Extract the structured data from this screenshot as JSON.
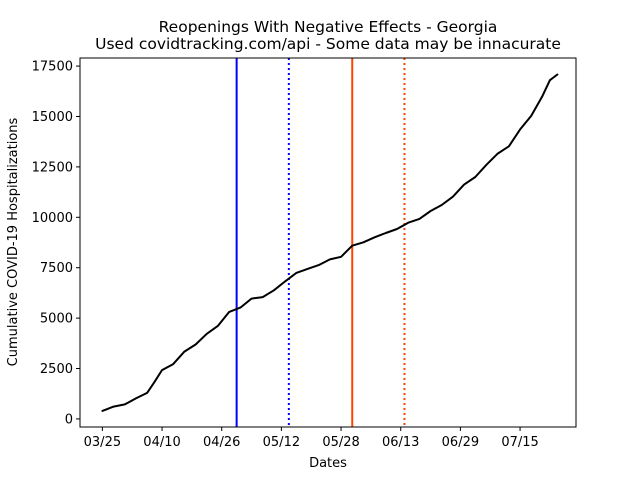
{
  "chart_data": {
    "type": "line",
    "title": "Reopenings With Negative Effects - Georgia",
    "subtitle": "Used covidtracking.com/api - Some data may be innacurate",
    "xlabel": "Dates",
    "ylabel": "Cumulative COVID-19 Hospitalizations",
    "x_ticks": [
      "03/25",
      "04/10",
      "04/26",
      "05/12",
      "05/28",
      "06/13",
      "06/29",
      "07/15"
    ],
    "y_ticks": [
      0,
      2500,
      5000,
      7500,
      10000,
      12500,
      15000,
      17500
    ],
    "xlim": [
      "2020-03-19",
      "2020-07-30"
    ],
    "ylim": [
      -400,
      17900
    ],
    "grid": false,
    "series": [
      {
        "color": "#000000",
        "x": [
          "2020-03-25",
          "2020-03-28",
          "2020-03-31",
          "2020-04-03",
          "2020-04-06",
          "2020-04-08",
          "2020-04-10",
          "2020-04-13",
          "2020-04-16",
          "2020-04-19",
          "2020-04-22",
          "2020-04-25",
          "2020-04-28",
          "2020-05-01",
          "2020-05-04",
          "2020-05-07",
          "2020-05-10",
          "2020-05-13",
          "2020-05-16",
          "2020-05-19",
          "2020-05-22",
          "2020-05-25",
          "2020-05-28",
          "2020-05-31",
          "2020-06-03",
          "2020-06-06",
          "2020-06-09",
          "2020-06-12",
          "2020-06-15",
          "2020-06-18",
          "2020-06-21",
          "2020-06-24",
          "2020-06-27",
          "2020-06-30",
          "2020-07-03",
          "2020-07-06",
          "2020-07-09",
          "2020-07-12",
          "2020-07-15",
          "2020-07-18",
          "2020-07-21",
          "2020-07-23",
          "2020-07-25"
        ],
        "values": [
          400,
          610,
          720,
          1020,
          1290,
          1840,
          2420,
          2720,
          3340,
          3690,
          4220,
          4620,
          5310,
          5520,
          5970,
          6040,
          6380,
          6820,
          7240,
          7440,
          7630,
          7910,
          8040,
          8590,
          8760,
          9010,
          9220,
          9420,
          9730,
          9920,
          10310,
          10610,
          11020,
          11620,
          12000,
          12610,
          13160,
          13520,
          14360,
          15030,
          16010,
          16800,
          17080
        ]
      }
    ],
    "reference_lines": [
      {
        "x": "2020-04-30",
        "color": "#0000ff",
        "style": "solid"
      },
      {
        "x": "2020-05-14",
        "color": "#0000ff",
        "style": "dotted"
      },
      {
        "x": "2020-05-31",
        "color": "#ff4500",
        "style": "solid"
      },
      {
        "x": "2020-06-14",
        "color": "#ff4500",
        "style": "dotted"
      }
    ]
  }
}
